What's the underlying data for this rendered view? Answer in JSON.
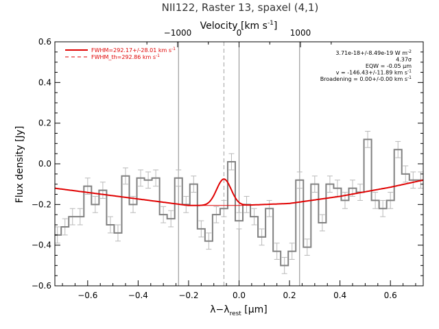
{
  "chart_data": {
    "type": "line",
    "title": "NII122, Raster 13, spaxel (4,1)",
    "xlabel": "λ−λ",
    "xlabel_sub": "rest",
    "xlabel_unit": " [μm]",
    "ylabel": "Flux density [Jy]",
    "top_axis_label": "Velocity [km s",
    "top_axis_label_sup": "-1",
    "top_axis_label_end": "]",
    "xlim": [
      -0.73,
      0.73
    ],
    "ylim": [
      -0.6,
      0.6
    ],
    "x_ticks": [
      -0.6,
      -0.4,
      -0.2,
      0.0,
      0.2,
      0.4,
      0.6
    ],
    "x_tick_labels": [
      "−0.6",
      "−0.4",
      "−0.2",
      "0.0",
      "0.2",
      "0.4",
      "0.6"
    ],
    "y_ticks": [
      -0.6,
      -0.4,
      -0.2,
      0.0,
      0.2,
      0.4,
      0.6
    ],
    "y_tick_labels": [
      "−0.6",
      "−0.4",
      "−0.2",
      "0.0",
      "0.2",
      "0.4",
      "0.6"
    ],
    "top_ticks_um": [
      -0.2435,
      0.0,
      0.2435
    ],
    "top_tick_labels": [
      "−1000",
      "0",
      "1000"
    ],
    "vertical_lines_um": [
      -0.24,
      0.0,
      0.24
    ],
    "dashed_line_um": -0.06,
    "spectrum": {
      "name": "data",
      "color": "#808080",
      "bin_width": 0.03,
      "x": [
        -0.72,
        -0.69,
        -0.66,
        -0.63,
        -0.6,
        -0.57,
        -0.54,
        -0.51,
        -0.48,
        -0.45,
        -0.42,
        -0.39,
        -0.36,
        -0.33,
        -0.3,
        -0.27,
        -0.24,
        -0.21,
        -0.18,
        -0.15,
        -0.12,
        -0.09,
        -0.06,
        -0.03,
        0.0,
        0.03,
        0.06,
        0.09,
        0.12,
        0.15,
        0.18,
        0.21,
        0.24,
        0.27,
        0.3,
        0.33,
        0.36,
        0.39,
        0.42,
        0.45,
        0.48,
        0.51,
        0.54,
        0.57,
        0.6,
        0.63,
        0.66,
        0.69,
        0.72
      ],
      "y": [
        -0.35,
        -0.31,
        -0.26,
        -0.26,
        -0.11,
        -0.2,
        -0.13,
        -0.3,
        -0.34,
        -0.06,
        -0.2,
        -0.07,
        -0.08,
        -0.07,
        -0.25,
        -0.27,
        -0.07,
        -0.2,
        -0.1,
        -0.32,
        -0.38,
        -0.25,
        -0.22,
        0.01,
        -0.28,
        -0.2,
        -0.26,
        -0.36,
        -0.22,
        -0.43,
        -0.5,
        -0.43,
        -0.08,
        -0.41,
        -0.1,
        -0.29,
        -0.1,
        -0.12,
        -0.18,
        -0.12,
        -0.14,
        0.12,
        -0.18,
        -0.22,
        -0.18,
        0.07,
        -0.05,
        -0.08,
        -0.08
      ],
      "err": 0.04
    },
    "fit_model": {
      "name": "FWHM=292.17+/-28.01 km s",
      "name_sup": "-1",
      "color": "#e00000",
      "center_um": -0.06,
      "amplitude_jy": 0.13,
      "fwhm_um": 0.068,
      "baseline_x": [
        -0.73,
        -0.2,
        0.0,
        0.2,
        0.4,
        0.6,
        0.73
      ],
      "baseline_y": [
        -0.12,
        -0.205,
        -0.205,
        -0.195,
        -0.16,
        -0.115,
        -0.08
      ]
    },
    "theoretical_model": {
      "name": "FWHM_th=292.86 km s",
      "name_sup": "-1",
      "color": "#e00000",
      "style": "dashed"
    },
    "legend_position": "top-left",
    "annotations": [
      {
        "text": "3.71e-18+/-8.49e-19 W m",
        "sup": "-2"
      },
      {
        "text": "4.37σ",
        "sup": ""
      },
      {
        "text": "EQW = -0.05 μm",
        "sup": ""
      },
      {
        "text": "v = -146.43+/-11.89 km s",
        "sup": "-1"
      },
      {
        "text": "Broadening = 0.00+/-0.00 km s",
        "sup": "-1"
      }
    ]
  }
}
